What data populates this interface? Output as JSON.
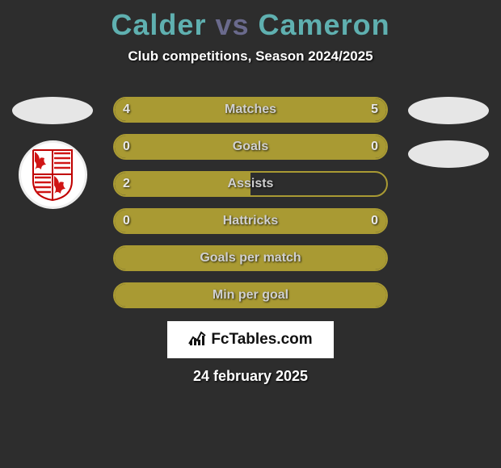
{
  "title": {
    "player1": "Calder",
    "vs": "vs",
    "player2": "Cameron",
    "player1_color": "#5fb0b0",
    "vs_color": "#6a6a8c",
    "player2_color": "#5fb0b0"
  },
  "subtitle": "Club competitions, Season 2024/2025",
  "background_color": "#2d2d2d",
  "bar_color": "#a99a33",
  "bar_border_color": "#a99a33",
  "ellipse_color": "#e6e6e6",
  "stats": [
    {
      "label": "Matches",
      "left_val": "4",
      "right_val": "5",
      "left_pct": 44,
      "right_pct": 56,
      "show_vals": true
    },
    {
      "label": "Goals",
      "left_val": "0",
      "right_val": "0",
      "left_pct": 0,
      "right_pct": 100,
      "show_vals": true
    },
    {
      "label": "Assists",
      "left_val": "2",
      "right_val": "",
      "left_pct": 50,
      "right_pct": 0,
      "show_vals": true
    },
    {
      "label": "Hattricks",
      "left_val": "0",
      "right_val": "0",
      "left_pct": 0,
      "right_pct": 100,
      "show_vals": true
    },
    {
      "label": "Goals per match",
      "left_val": "",
      "right_val": "",
      "left_pct": 100,
      "right_pct": 0,
      "show_vals": false
    },
    {
      "label": "Min per goal",
      "left_val": "",
      "right_val": "",
      "left_pct": 100,
      "right_pct": 0,
      "show_vals": false
    }
  ],
  "logo_text_prefix": "Fc",
  "logo_text_rest": "Tables.com",
  "date": "24 february 2025",
  "club_badge": {
    "stroke": "#c00000",
    "fill_white": "#ffffff",
    "fill_red": "#d01515"
  }
}
